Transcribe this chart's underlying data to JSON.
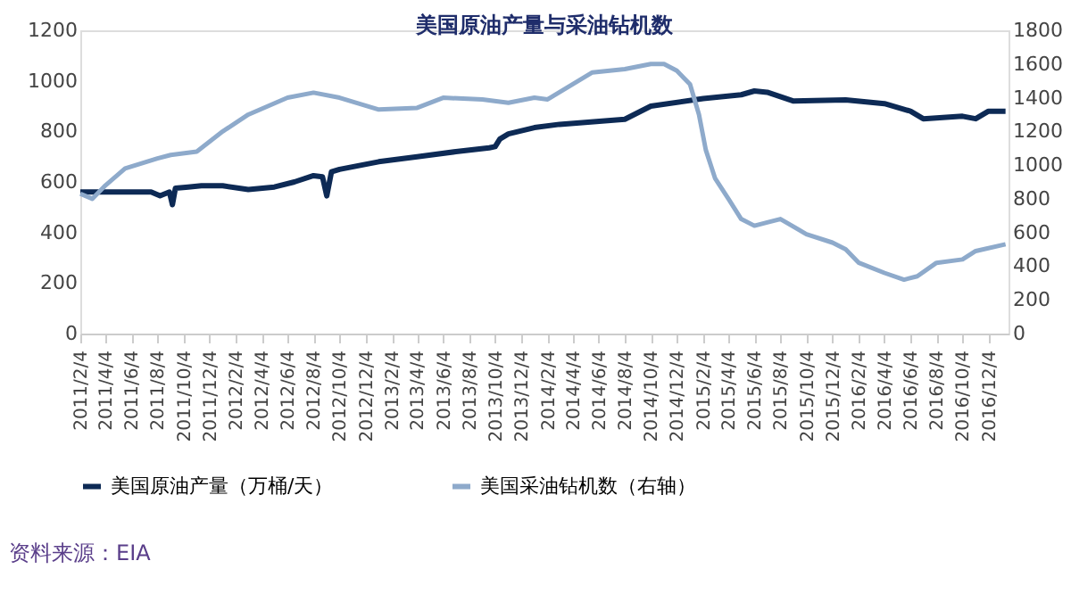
{
  "chart_data": {
    "type": "line",
    "title": "美国原油产量与采油钻机数",
    "annotations": [
      "资料来源：EIA"
    ],
    "legend": "bottom",
    "grid": false,
    "marker": "none",
    "line_style": "solid",
    "xlim": [
      "2011-02-04",
      "2017-01-20"
    ],
    "xticks": [
      {
        "value": "2011-02-04",
        "label": "2011/2/4"
      },
      {
        "value": "2011-04-04",
        "label": "2011/4/4"
      },
      {
        "value": "2011-06-04",
        "label": "2011/6/4"
      },
      {
        "value": "2011-08-04",
        "label": "2011/8/4"
      },
      {
        "value": "2011-10-04",
        "label": "2011/10/4"
      },
      {
        "value": "2011-12-04",
        "label": "2011/12/4"
      },
      {
        "value": "2012-02-04",
        "label": "2012/2/4"
      },
      {
        "value": "2012-04-04",
        "label": "2012/4/4"
      },
      {
        "value": "2012-06-04",
        "label": "2012/6/4"
      },
      {
        "value": "2012-08-04",
        "label": "2012/8/4"
      },
      {
        "value": "2012-10-04",
        "label": "2012/10/4"
      },
      {
        "value": "2012-12-04",
        "label": "2012/12/4"
      },
      {
        "value": "2013-02-04",
        "label": "2013/2/4"
      },
      {
        "value": "2013-04-04",
        "label": "2013/4/4"
      },
      {
        "value": "2013-06-04",
        "label": "2013/6/4"
      },
      {
        "value": "2013-08-04",
        "label": "2013/8/4"
      },
      {
        "value": "2013-10-04",
        "label": "2013/10/4"
      },
      {
        "value": "2013-12-04",
        "label": "2013/12/4"
      },
      {
        "value": "2014-02-04",
        "label": "2014/2/4"
      },
      {
        "value": "2014-04-04",
        "label": "2014/4/4"
      },
      {
        "value": "2014-06-04",
        "label": "2014/6/4"
      },
      {
        "value": "2014-08-04",
        "label": "2014/8/4"
      },
      {
        "value": "2014-10-04",
        "label": "2014/10/4"
      },
      {
        "value": "2014-12-04",
        "label": "2014/12/4"
      },
      {
        "value": "2015-02-04",
        "label": "2015/2/4"
      },
      {
        "value": "2015-04-04",
        "label": "2015/4/4"
      },
      {
        "value": "2015-06-04",
        "label": "2015/6/4"
      },
      {
        "value": "2015-08-04",
        "label": "2015/8/4"
      },
      {
        "value": "2015-10-04",
        "label": "2015/10/4"
      },
      {
        "value": "2015-12-04",
        "label": "2015/12/4"
      },
      {
        "value": "2016-02-04",
        "label": "2016/2/4"
      },
      {
        "value": "2016-04-04",
        "label": "2016/4/4"
      },
      {
        "value": "2016-06-04",
        "label": "2016/6/4"
      },
      {
        "value": "2016-08-04",
        "label": "2016/8/4"
      },
      {
        "value": "2016-10-04",
        "label": "2016/10/4"
      },
      {
        "value": "2016-12-04",
        "label": "2016/12/4"
      }
    ],
    "ylim": [
      0,
      1200
    ],
    "yticks": [
      0,
      200,
      400,
      600,
      800,
      1000,
      1200
    ],
    "y2lim": [
      0,
      1800
    ],
    "y2ticks": [
      0,
      200,
      400,
      600,
      800,
      1000,
      1200,
      1400,
      1600,
      1800
    ],
    "series": [
      {
        "name": "美国原油产量（万桶/天）",
        "color": "#0d2a55",
        "x": [
          "2011-02-04",
          "2011-04-04",
          "2011-06-04",
          "2011-07-20",
          "2011-08-10",
          "2011-09-01",
          "2011-09-08",
          "2011-09-15",
          "2011-10-15",
          "2011-11-15",
          "2012-01-04",
          "2012-03-04",
          "2012-05-04",
          "2012-06-20",
          "2012-08-04",
          "2012-08-25",
          "2012-09-04",
          "2012-09-15",
          "2012-10-04",
          "2013-01-04",
          "2013-04-04",
          "2013-07-04",
          "2013-09-20",
          "2013-10-04",
          "2013-10-15",
          "2013-11-04",
          "2014-01-04",
          "2014-03-04",
          "2014-08-04",
          "2014-10-04",
          "2015-02-04",
          "2015-05-04",
          "2015-06-04",
          "2015-07-04",
          "2015-09-04",
          "2016-01-04",
          "2016-04-04",
          "2016-06-04",
          "2016-07-04",
          "2016-10-04",
          "2016-11-04",
          "2016-12-04",
          "2017-01-13"
        ],
        "values": [
          560,
          560,
          560,
          560,
          545,
          560,
          510,
          575,
          580,
          585,
          585,
          570,
          580,
          600,
          625,
          620,
          545,
          640,
          650,
          680,
          700,
          720,
          735,
          740,
          770,
          790,
          815,
          828,
          848,
          900,
          930,
          945,
          960,
          955,
          920,
          925,
          910,
          880,
          850,
          860,
          850,
          880,
          880
        ]
      },
      {
        "name": "美国采油钻机数（右轴）",
        "color": "#8eaacb",
        "axis": "y2",
        "x": [
          "2011-02-04",
          "2011-03-04",
          "2011-04-04",
          "2011-05-20",
          "2011-08-04",
          "2011-09-04",
          "2011-11-04",
          "2012-01-04",
          "2012-03-04",
          "2012-06-04",
          "2012-08-04",
          "2012-10-04",
          "2013-01-04",
          "2013-04-04",
          "2013-06-04",
          "2013-09-04",
          "2013-11-04",
          "2014-01-04",
          "2014-02-04",
          "2014-04-04",
          "2014-05-20",
          "2014-08-04",
          "2014-10-04",
          "2014-11-04",
          "2014-12-04",
          "2015-01-04",
          "2015-01-25",
          "2015-02-10",
          "2015-03-04",
          "2015-04-04",
          "2015-05-04",
          "2015-06-04",
          "2015-07-04",
          "2015-08-04",
          "2015-10-04",
          "2015-12-04",
          "2016-01-04",
          "2016-02-04",
          "2016-04-04",
          "2016-05-20",
          "2016-06-20",
          "2016-08-04",
          "2016-10-04",
          "2016-11-04",
          "2017-01-13"
        ],
        "values": [
          830,
          800,
          880,
          980,
          1040,
          1060,
          1080,
          1200,
          1300,
          1400,
          1430,
          1400,
          1330,
          1340,
          1400,
          1390,
          1370,
          1400,
          1390,
          1480,
          1550,
          1570,
          1600,
          1600,
          1560,
          1480,
          1300,
          1090,
          920,
          800,
          680,
          640,
          660,
          680,
          590,
          540,
          500,
          420,
          360,
          320,
          340,
          420,
          440,
          490,
          530
        ]
      }
    ]
  }
}
